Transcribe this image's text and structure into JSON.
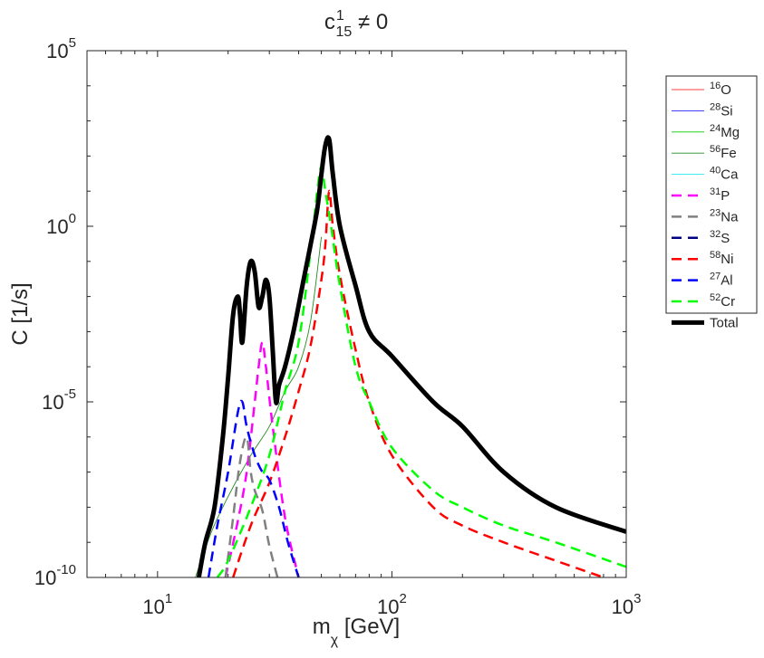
{
  "chart_data": {
    "type": "line",
    "title": {
      "base": "c",
      "sup": "1",
      "sub": "15",
      "suffix": " ≠ 0"
    },
    "xlabel": {
      "base": "m",
      "sub": "χ",
      "suffix": " [GeV]"
    },
    "ylabel": "C [1/s]",
    "xscale": "log",
    "yscale": "log",
    "xlim": [
      5,
      1000
    ],
    "ylim": [
      1e-10,
      100000
    ],
    "xticks": [
      {
        "value": 10,
        "base": "10",
        "exp": "1"
      },
      {
        "value": 100,
        "base": "10",
        "exp": "2"
      },
      {
        "value": 1000,
        "base": "10",
        "exp": "3"
      }
    ],
    "yticks": [
      {
        "value": 1e-10,
        "base": "10",
        "exp": "-10"
      },
      {
        "value": 1e-05,
        "base": "10",
        "exp": "-5"
      },
      {
        "value": 1,
        "base": "10",
        "exp": "0"
      },
      {
        "value": 100000,
        "base": "10",
        "exp": "5"
      }
    ],
    "legend_position": "outside-top-right",
    "series": [
      {
        "name": "16O",
        "sup": "16",
        "label": "O",
        "color": "#ff0000",
        "style": "solid",
        "width": 0.8,
        "x": [],
        "y": []
      },
      {
        "name": "28Si",
        "sup": "28",
        "label": "Si",
        "color": "#0000ff",
        "style": "solid",
        "width": 0.8,
        "x": [],
        "y": []
      },
      {
        "name": "24Mg",
        "sup": "24",
        "label": "Mg",
        "color": "#00cc00",
        "style": "solid",
        "width": 0.8,
        "x": [],
        "y": []
      },
      {
        "name": "56Fe",
        "sup": "56",
        "label": "Fe",
        "color": "#228b22",
        "style": "solid",
        "width": 0.9,
        "x": [
          14.5,
          17,
          20,
          25,
          30,
          35,
          40,
          45,
          50
        ],
        "y": [
          1e-10,
          2e-09,
          2e-08,
          3e-07,
          2e-06,
          2e-05,
          0.0001,
          0.002,
          0.5
        ]
      },
      {
        "name": "40Ca",
        "sup": "40",
        "label": "Ca",
        "color": "#00e5ee",
        "style": "solid",
        "width": 0.8,
        "x": [],
        "y": []
      },
      {
        "name": "31P",
        "sup": "31",
        "label": "P",
        "color": "#ff00ff",
        "style": "dashed",
        "width": 2.5,
        "x": [
          19.5,
          22,
          24,
          26,
          27,
          28,
          29,
          31,
          35,
          40
        ],
        "y": [
          1e-10,
          4e-09,
          1e-07,
          1e-05,
          0.0001,
          0.0005,
          0.0001,
          2e-06,
          5e-09,
          1e-10
        ]
      },
      {
        "name": "23Na",
        "sup": "23",
        "label": "Na",
        "color": "#808080",
        "style": "dashed",
        "width": 2.5,
        "x": [
          19.5,
          21,
          22.5,
          24,
          25,
          26,
          28,
          30,
          32.5
        ],
        "y": [
          1e-10,
          5e-09,
          2e-07,
          1e-06,
          1e-07,
          3e-08,
          8e-09,
          8e-10,
          1e-10
        ]
      },
      {
        "name": "32S",
        "sup": "32",
        "label": "S",
        "color": "#000080",
        "style": "dashed",
        "width": 2.5,
        "x": [],
        "y": []
      },
      {
        "name": "58Ni",
        "sup": "58",
        "label": "Ni",
        "color": "#ff0000",
        "style": "dashed",
        "width": 2.5,
        "x": [
          21,
          25,
          30,
          35,
          40,
          45,
          50,
          52,
          54,
          56,
          60,
          70,
          80,
          100,
          150,
          200,
          300,
          500,
          800
        ],
        "y": [
          1e-10,
          3e-09,
          5e-08,
          1e-06,
          2e-05,
          0.0004,
          0.03,
          0.3,
          10,
          1,
          0.04,
          0.0003,
          1e-05,
          3e-07,
          1e-08,
          3e-09,
          1e-09,
          3e-10,
          1e-10
        ]
      },
      {
        "name": "27Al",
        "sup": "27",
        "label": "Al",
        "color": "#0000ff",
        "style": "dashed",
        "width": 2.5,
        "x": [
          16.5,
          18,
          20,
          22,
          23,
          24,
          26,
          28,
          30,
          33,
          36,
          40
        ],
        "y": [
          1e-10,
          3e-09,
          1e-07,
          5e-06,
          1e-05,
          2e-06,
          3e-07,
          1e-07,
          6e-08,
          1e-08,
          1e-09,
          1e-10
        ]
      },
      {
        "name": "52Cr",
        "sup": "52",
        "label": "Cr",
        "color": "#00ff00",
        "style": "dashed",
        "width": 2.5,
        "x": [
          18,
          20,
          25,
          30,
          35,
          40,
          45,
          48,
          50,
          52,
          55,
          60,
          70,
          80,
          100,
          150,
          200,
          300,
          500,
          1000
        ],
        "y": [
          1e-10,
          3e-10,
          1e-08,
          3e-07,
          2e-05,
          0.0005,
          0.2,
          10,
          50,
          10,
          1,
          0.02,
          0.0001,
          1e-05,
          5e-07,
          3e-08,
          1e-08,
          3e-09,
          1e-09,
          2e-10
        ]
      },
      {
        "name": "Total",
        "sup": "",
        "label": "Total",
        "color": "#000000",
        "style": "solid",
        "width": 5,
        "x": [
          15,
          16,
          17.5,
          19,
          20,
          21,
          22,
          22.5,
          23,
          24,
          25,
          26,
          27,
          28,
          29,
          30,
          31,
          32,
          33,
          35,
          38,
          42,
          45,
          48,
          50,
          52,
          54,
          56,
          60,
          70,
          80,
          100,
          150,
          200,
          300,
          500,
          1000
        ],
        "y": [
          1e-10,
          1e-09,
          1e-08,
          1e-06,
          5e-05,
          0.003,
          0.01,
          0.003,
          0.0005,
          0.02,
          0.1,
          0.05,
          0.005,
          0.01,
          0.03,
          0.01,
          0.0003,
          1e-05,
          3e-05,
          0.0001,
          0.001,
          0.03,
          0.3,
          3,
          30,
          200,
          300,
          30,
          1,
          0.02,
          0.001,
          0.0002,
          1e-05,
          2e-06,
          1e-07,
          1e-08,
          2e-09
        ]
      }
    ]
  }
}
